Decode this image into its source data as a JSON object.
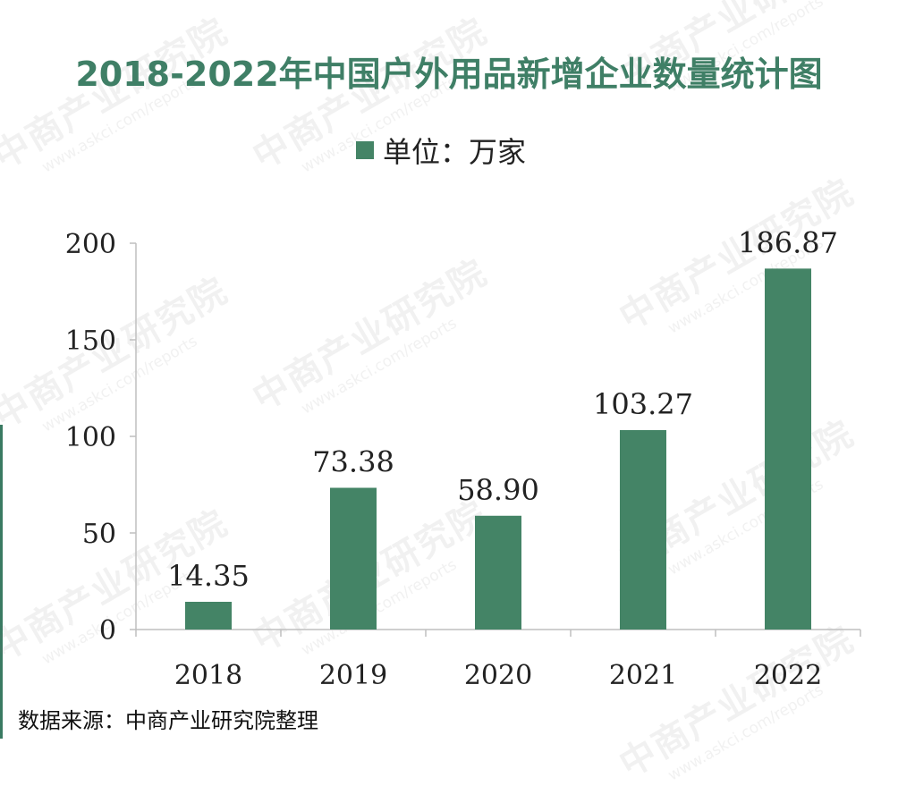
{
  "title": "2018-2022年中国户外用品新增企业数量统计图",
  "legend": {
    "label": "单位：万家",
    "color": "#448466"
  },
  "source": "数据来源：中商产业研究院整理",
  "watermark": {
    "brand": "中商产业研究院",
    "url": "www.askci.com/reports"
  },
  "chart_data": {
    "type": "bar",
    "title": "2018-2022年中国户外用品新增企业数量统计图",
    "categories": [
      "2018",
      "2019",
      "2020",
      "2021",
      "2022"
    ],
    "values": [
      14.35,
      73.38,
      58.9,
      103.27,
      186.87
    ],
    "value_labels": [
      "14.35",
      "73.38",
      "58.90",
      "103.27",
      "186.87"
    ],
    "series": [
      {
        "name": "单位：万家",
        "values": [
          14.35,
          73.38,
          58.9,
          103.27,
          186.87
        ]
      }
    ],
    "yticks": [
      "0",
      "50",
      "100",
      "150",
      "200"
    ],
    "ylim": [
      0,
      200
    ],
    "xlabel": "",
    "ylabel": "",
    "grid": false,
    "legend_position": "top-center",
    "bar_color": "#448466"
  }
}
